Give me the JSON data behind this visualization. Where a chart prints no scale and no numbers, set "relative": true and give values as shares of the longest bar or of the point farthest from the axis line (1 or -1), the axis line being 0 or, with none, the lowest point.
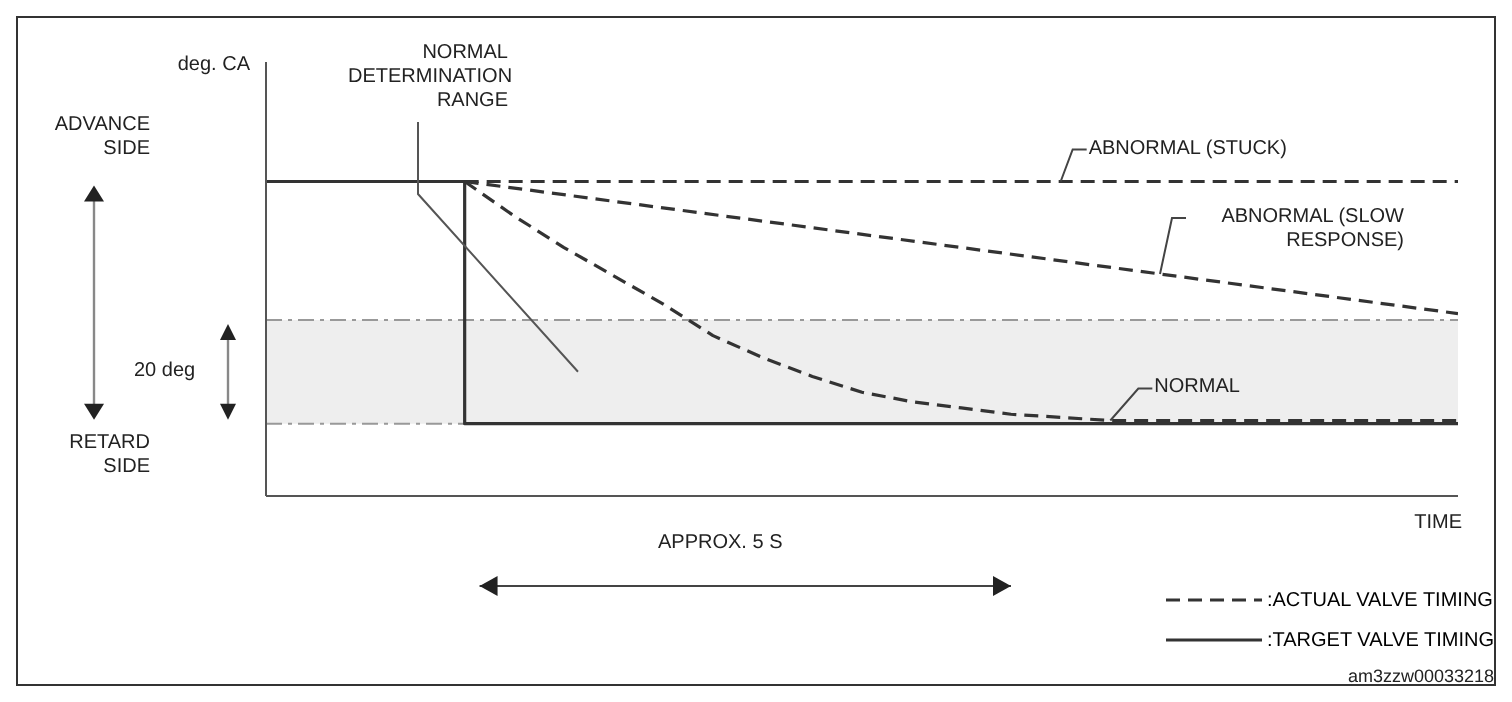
{
  "chart_data": {
    "type": "line",
    "relative": true,
    "xlabel": "TIME",
    "legend": "bottom right",
    "categories": [
      null,
      null,
      null,
      null,
      null,
      null,
      null,
      null,
      null,
      null,
      null,
      null,
      null,
      null,
      null,
      null,
      null,
      null,
      null,
      null,
      null,
      null,
      null,
      null,
      null
    ],
    "series": [
      {
        "name": ":TARGET VALVE TIMING",
        "type": "step",
        "color": "#333333",
        "line_style": "solid",
        "values": [
          1,
          1,
          1,
          1,
          0.23,
          0.23,
          0.23,
          0.23,
          0.23,
          0.23,
          0.23,
          0.23,
          0.23,
          0.23,
          0.23,
          0.23,
          0.23,
          0.23,
          0.23,
          0.23,
          0.23,
          0.23,
          0.23,
          0.23,
          0.23
        ]
      },
      {
        "name": "ABNORMAL (STUCK)",
        "color": "#333333",
        "line_style": "dashed",
        "values": [
          null,
          null,
          null,
          null,
          1,
          null,
          null,
          null,
          null,
          null,
          null,
          null,
          null,
          null,
          null,
          null,
          null,
          null,
          null,
          null,
          null,
          null,
          null,
          null,
          1
        ]
      },
      {
        "name": "ABNORMAL (SLOW RESPONSE)",
        "color": "#333333",
        "line_style": "dashed",
        "values": [
          null,
          null,
          null,
          null,
          1,
          null,
          null,
          null,
          null,
          null,
          null,
          null,
          null,
          null,
          null,
          null,
          null,
          null,
          null,
          null,
          null,
          null,
          null,
          null,
          0.58
        ]
      },
      {
        "name": "NORMAL",
        "color": "#333333",
        "line_style": "dashed",
        "values": [
          null,
          null,
          null,
          null,
          1,
          0.89,
          0.79,
          0.7,
          0.61,
          0.51,
          0.44,
          0.38,
          0.33,
          0.3,
          0.28,
          0.26,
          0.25,
          0.24,
          0.24,
          0.24,
          0.24,
          0.24,
          0.24,
          0.24,
          0.24
        ]
      }
    ],
    "bands": [
      {
        "axis": "y",
        "from": 0.23,
        "to": 0.56,
        "label": "NORMAL DETERMINATION RANGE",
        "color": "#eeeeee"
      }
    ],
    "ref_lines": [
      {
        "axis": "y",
        "value": 0.23,
        "color": "#999999"
      },
      {
        "axis": "y",
        "value": 0.56,
        "color": "#999999"
      }
    ],
    "annotations": [
      "ADVANCE SIDE",
      "RETARD SIDE",
      "20 deg",
      "APPROX. 5 S",
      ":ACTUAL VALVE TIMING",
      "am3zzw00033218",
      "deg. CA"
    ]
  }
}
